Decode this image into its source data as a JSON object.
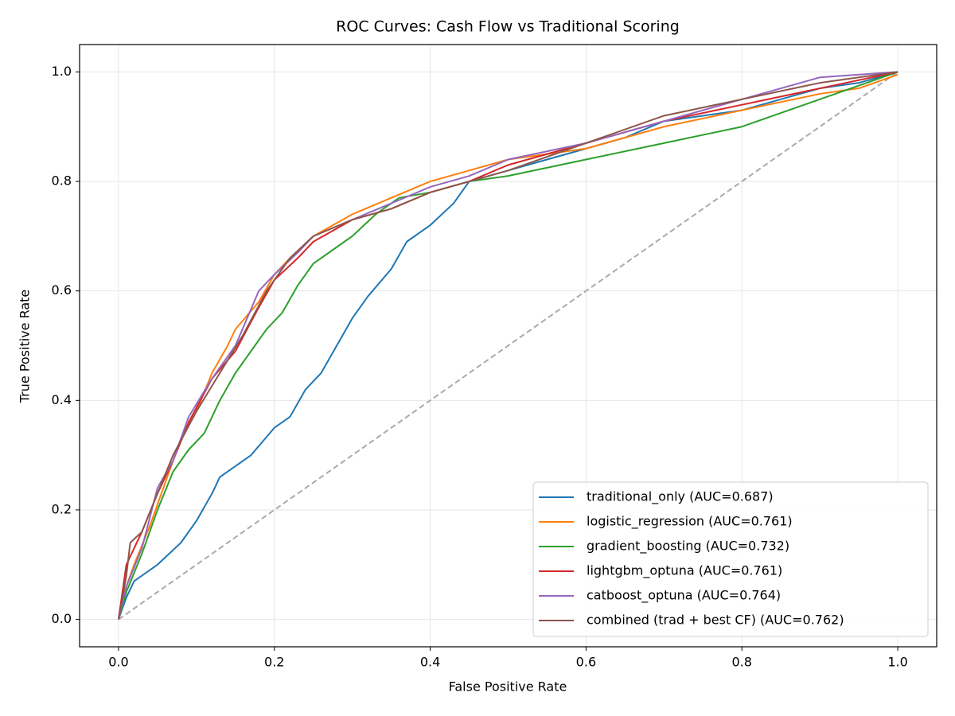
{
  "chart_data": {
    "type": "line",
    "title": "ROC Curves: Cash Flow vs Traditional Scoring",
    "x_label": "False Positive Rate",
    "y_label": "True Positive Rate",
    "xlim": [
      -0.05,
      1.05
    ],
    "ylim": [
      -0.05,
      1.05
    ],
    "xticks": [
      {
        "value": 0,
        "label": "0.0"
      },
      0.2,
      0.4,
      0.6,
      0.8,
      {
        "value": 1,
        "label": "1.0"
      }
    ],
    "yticks": [
      {
        "value": 0,
        "label": "0.0"
      },
      0.2,
      0.4,
      0.6,
      0.8,
      {
        "value": 1,
        "label": "1.0"
      }
    ],
    "grid": true,
    "legend": "lower right",
    "diagonal": {
      "x": [
        0,
        1
      ],
      "y": [
        0,
        1
      ],
      "color": "#aaaaaa",
      "dash": true
    },
    "series": [
      {
        "name": "traditional_only (AUC=0.687)",
        "color": "#1f77b4",
        "x": [
          0,
          0.01,
          0.02,
          0.05,
          0.08,
          0.1,
          0.12,
          0.13,
          0.15,
          0.17,
          0.2,
          0.22,
          0.24,
          0.26,
          0.28,
          0.3,
          0.32,
          0.35,
          0.37,
          0.4,
          0.43,
          0.45,
          0.5,
          0.55,
          0.6,
          0.65,
          0.7,
          0.75,
          0.8,
          0.85,
          0.9,
          0.95,
          1
        ],
        "values": [
          0,
          0.04,
          0.07,
          0.1,
          0.14,
          0.18,
          0.23,
          0.26,
          0.28,
          0.3,
          0.35,
          0.37,
          0.42,
          0.45,
          0.5,
          0.55,
          0.59,
          0.64,
          0.69,
          0.72,
          0.76,
          0.8,
          0.82,
          0.84,
          0.86,
          0.88,
          0.91,
          0.92,
          0.93,
          0.95,
          0.97,
          0.98,
          1
        ]
      },
      {
        "name": "logistic_regression (AUC=0.761)",
        "color": "#ff7f0e",
        "x": [
          0,
          0.005,
          0.02,
          0.04,
          0.06,
          0.08,
          0.1,
          0.12,
          0.14,
          0.15,
          0.18,
          0.2,
          0.22,
          0.25,
          0.3,
          0.35,
          0.4,
          0.45,
          0.5,
          0.6,
          0.7,
          0.8,
          0.9,
          0.95,
          1
        ],
        "values": [
          0,
          0.04,
          0.1,
          0.17,
          0.25,
          0.33,
          0.38,
          0.45,
          0.5,
          0.53,
          0.58,
          0.63,
          0.66,
          0.7,
          0.74,
          0.77,
          0.8,
          0.82,
          0.84,
          0.86,
          0.9,
          0.93,
          0.96,
          0.97,
          0.995
        ]
      },
      {
        "name": "gradient_boosting (AUC=0.732)",
        "color": "#2ca02c",
        "x": [
          0,
          0.01,
          0.03,
          0.05,
          0.07,
          0.09,
          0.11,
          0.13,
          0.15,
          0.17,
          0.19,
          0.21,
          0.23,
          0.25,
          0.28,
          0.3,
          0.33,
          0.36,
          0.4,
          0.45,
          0.5,
          0.6,
          0.7,
          0.8,
          0.9,
          1
        ],
        "values": [
          0,
          0.05,
          0.12,
          0.2,
          0.27,
          0.31,
          0.34,
          0.4,
          0.45,
          0.49,
          0.53,
          0.56,
          0.61,
          0.65,
          0.68,
          0.7,
          0.74,
          0.77,
          0.78,
          0.8,
          0.81,
          0.84,
          0.87,
          0.9,
          0.95,
          1
        ]
      },
      {
        "name": "lightgbm_optuna (AUC=0.761)",
        "color": "#d62728",
        "x": [
          0,
          0.01,
          0.03,
          0.05,
          0.07,
          0.09,
          0.12,
          0.15,
          0.18,
          0.2,
          0.23,
          0.25,
          0.3,
          0.35,
          0.4,
          0.45,
          0.5,
          0.6,
          0.7,
          0.8,
          0.9,
          1
        ],
        "values": [
          0,
          0.1,
          0.16,
          0.23,
          0.29,
          0.36,
          0.44,
          0.49,
          0.57,
          0.62,
          0.66,
          0.69,
          0.73,
          0.75,
          0.78,
          0.8,
          0.83,
          0.87,
          0.91,
          0.94,
          0.97,
          1
        ]
      },
      {
        "name": "catboost_optuna (AUC=0.764)",
        "color": "#9467bd",
        "x": [
          0,
          0.01,
          0.03,
          0.05,
          0.07,
          0.09,
          0.12,
          0.15,
          0.18,
          0.2,
          0.23,
          0.25,
          0.3,
          0.35,
          0.4,
          0.45,
          0.5,
          0.6,
          0.7,
          0.8,
          0.9,
          1
        ],
        "values": [
          0,
          0.06,
          0.13,
          0.24,
          0.29,
          0.37,
          0.44,
          0.5,
          0.6,
          0.63,
          0.67,
          0.7,
          0.73,
          0.76,
          0.79,
          0.81,
          0.84,
          0.87,
          0.91,
          0.95,
          0.99,
          1
        ]
      },
      {
        "name": "combined (trad + best CF) (AUC=0.762)",
        "color": "#8c564b",
        "x": [
          0,
          0.01,
          0.015,
          0.03,
          0.05,
          0.07,
          0.1,
          0.13,
          0.16,
          0.19,
          0.22,
          0.25,
          0.3,
          0.35,
          0.4,
          0.45,
          0.5,
          0.6,
          0.7,
          0.8,
          0.9,
          1
        ],
        "values": [
          0,
          0.08,
          0.14,
          0.16,
          0.23,
          0.3,
          0.38,
          0.45,
          0.52,
          0.6,
          0.66,
          0.7,
          0.73,
          0.75,
          0.78,
          0.8,
          0.82,
          0.87,
          0.92,
          0.95,
          0.98,
          1
        ]
      }
    ]
  }
}
